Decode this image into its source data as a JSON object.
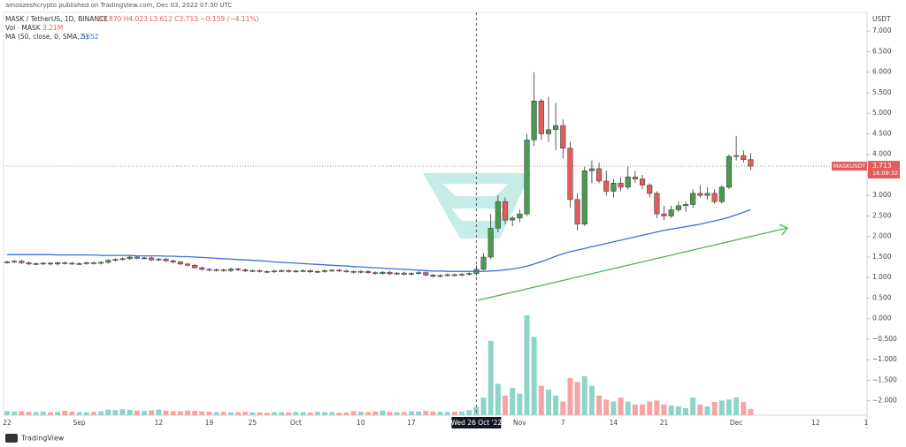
{
  "chart_data": {
    "type": "candlestick",
    "publisher": "amoozeshcrypto published on TradingView.com, Dec 03, 2022 07:50 UTC",
    "title": "MASK / TetherUS, 1D, BINANCE",
    "ohlc_label": "O3.870  H4.023  L3.612  C3.713  −0.159 (−4.11%)",
    "volume_title": "Vol · MASK",
    "volume_label": "3.21M",
    "ma_title": "MA (50, close, 0, SMA, 5)",
    "ma_label": "2.652",
    "currency": "USDT",
    "price_tag": "MASKUSDT",
    "last_price_label": "3.713",
    "countdown": "16:09:32",
    "brand": "TradingView",
    "crosshair_category": "Wed 26 Oct '22",
    "up_color": "#4c9a50",
    "down_color": "#e25c5c",
    "volume_up_color": "#8fd4c8",
    "volume_down_color": "#f5a5a5",
    "ma_color": "#3a6fe0",
    "grid": false,
    "ylim": [
      -2.35,
      7.37
    ],
    "yticks": [
      {
        "value": 7,
        "label": "7.000"
      },
      {
        "value": 6.5,
        "label": "6.500"
      },
      {
        "value": 6,
        "label": "6.000"
      },
      {
        "value": 5.5,
        "label": "5.500"
      },
      {
        "value": 5,
        "label": "5.000"
      },
      {
        "value": 4.5,
        "label": "4.500"
      },
      {
        "value": 4,
        "label": "4.000"
      },
      {
        "value": 3.5,
        "label": "3.500"
      },
      {
        "value": 3,
        "label": "3.000"
      },
      {
        "value": 2.5,
        "label": "2.500"
      },
      {
        "value": 2,
        "label": "2.000"
      },
      {
        "value": 1.5,
        "label": "1.500"
      },
      {
        "value": 1,
        "label": "1.000"
      },
      {
        "value": 0.5,
        "label": "0.500"
      },
      {
        "value": 0,
        "label": "0.000"
      },
      {
        "value": -0.5,
        "label": "−0.500"
      },
      {
        "value": -1,
        "label": "−1.000"
      },
      {
        "value": -1.5,
        "label": "−1.500"
      },
      {
        "value": -2,
        "label": "−2.000"
      }
    ],
    "categories": [
      "22",
      null,
      null,
      null,
      null,
      null,
      null,
      null,
      null,
      null,
      "Sep",
      null,
      null,
      null,
      null,
      null,
      null,
      null,
      null,
      null,
      null,
      "12",
      null,
      null,
      null,
      null,
      null,
      null,
      "19",
      null,
      null,
      null,
      null,
      null,
      "25",
      null,
      null,
      null,
      null,
      null,
      "Oct",
      null,
      null,
      null,
      null,
      null,
      null,
      null,
      null,
      "10",
      null,
      null,
      null,
      null,
      null,
      null,
      "17",
      null,
      null,
      null,
      null,
      null,
      null,
      null,
      null,
      "Wed 26 Oct '22",
      null,
      null,
      null,
      null,
      null,
      "Nov",
      null,
      null,
      null,
      null,
      null,
      "7",
      null,
      null,
      null,
      null,
      null,
      null,
      "14",
      null,
      null,
      null,
      null,
      null,
      null,
      "21",
      null,
      null,
      null,
      null,
      null,
      null,
      null,
      null,
      null,
      "Dec",
      null,
      null,
      null,
      null,
      null,
      null,
      null,
      null,
      null,
      null,
      "12",
      null,
      null,
      null,
      null,
      null,
      null,
      "1"
    ],
    "open": [
      1.37,
      1.38,
      1.4,
      1.36,
      1.33,
      1.34,
      1.35,
      1.33,
      1.36,
      1.35,
      1.34,
      1.34,
      1.36,
      1.35,
      1.37,
      1.42,
      1.44,
      1.46,
      1.5,
      1.47,
      1.48,
      1.43,
      1.45,
      1.41,
      1.38,
      1.33,
      1.3,
      1.24,
      1.2,
      1.18,
      1.19,
      1.17,
      1.21,
      1.19,
      1.16,
      1.17,
      1.15,
      1.14,
      1.16,
      1.17,
      1.15,
      1.16,
      1.17,
      1.14,
      1.15,
      1.17,
      1.18,
      1.16,
      1.15,
      1.13,
      1.15,
      1.12,
      1.1,
      1.13,
      1.09,
      1.11,
      1.08,
      1.1,
      1.12,
      1.06,
      1.03,
      1.05,
      1.07,
      1.06,
      1.08,
      1.1,
      1.2,
      1.5,
      2.2,
      2.85,
      2.4,
      2.45,
      2.55,
      4.35,
      5.3,
      4.5,
      4.6,
      4.7,
      4.15,
      2.9,
      2.3,
      3.6,
      3.65,
      3.35,
      3.1,
      3.3,
      3.2,
      3.45,
      3.4,
      3.25,
      3.05,
      2.55,
      2.5,
      2.65,
      2.75,
      2.78,
      3.05,
      3.0,
      3.05,
      2.85,
      3.2,
      3.95,
      3.97,
      3.87,
      null,
      null,
      null,
      null,
      null,
      null,
      null,
      null,
      null,
      null,
      null,
      null,
      null,
      null,
      null,
      null
    ],
    "high": [
      1.41,
      1.43,
      1.43,
      1.39,
      1.37,
      1.38,
      1.38,
      1.39,
      1.39,
      1.38,
      1.37,
      1.39,
      1.39,
      1.4,
      1.45,
      1.47,
      1.49,
      1.53,
      1.53,
      1.51,
      1.51,
      1.48,
      1.48,
      1.44,
      1.41,
      1.36,
      1.33,
      1.27,
      1.23,
      1.22,
      1.22,
      1.24,
      1.24,
      1.22,
      1.2,
      1.2,
      1.18,
      1.19,
      1.2,
      1.2,
      1.19,
      1.2,
      1.2,
      1.18,
      1.2,
      1.21,
      1.21,
      1.19,
      1.18,
      1.18,
      1.18,
      1.15,
      1.16,
      1.16,
      1.14,
      1.14,
      1.13,
      1.15,
      1.15,
      1.09,
      1.08,
      1.1,
      1.1,
      1.11,
      1.13,
      1.3,
      1.6,
      2.55,
      3.0,
      2.95,
      2.5,
      2.65,
      4.5,
      6.0,
      5.35,
      5.4,
      5.25,
      4.85,
      4.3,
      3.05,
      3.7,
      3.85,
      3.8,
      3.6,
      3.4,
      3.45,
      3.7,
      3.6,
      3.5,
      3.3,
      3.1,
      2.75,
      2.75,
      2.85,
      2.85,
      3.15,
      3.25,
      3.2,
      3.15,
      3.25,
      4.0,
      4.45,
      4.1,
      4.023,
      null,
      null,
      null,
      null,
      null,
      null,
      null,
      null,
      null,
      null,
      null,
      null,
      null,
      null,
      null,
      null
    ],
    "low": [
      1.34,
      1.35,
      1.33,
      1.3,
      1.3,
      1.31,
      1.3,
      1.3,
      1.32,
      1.31,
      1.31,
      1.31,
      1.32,
      1.32,
      1.34,
      1.39,
      1.41,
      1.43,
      1.44,
      1.44,
      1.4,
      1.4,
      1.38,
      1.35,
      1.3,
      1.27,
      1.21,
      1.17,
      1.15,
      1.15,
      1.14,
      1.14,
      1.16,
      1.13,
      1.13,
      1.12,
      1.11,
      1.11,
      1.13,
      1.12,
      1.12,
      1.13,
      1.11,
      1.11,
      1.12,
      1.14,
      1.13,
      1.12,
      1.1,
      1.1,
      1.09,
      1.07,
      1.07,
      1.06,
      1.06,
      1.05,
      1.05,
      1.07,
      1.03,
      1.0,
      1.0,
      1.02,
      1.03,
      1.03,
      1.05,
      1.05,
      1.18,
      1.45,
      2.1,
      2.3,
      2.25,
      2.35,
      2.5,
      4.2,
      4.35,
      4.3,
      4.1,
      3.9,
      2.7,
      2.15,
      2.25,
      3.3,
      3.3,
      3.0,
      2.95,
      3.1,
      3.15,
      3.3,
      3.15,
      2.95,
      2.45,
      2.4,
      2.45,
      2.6,
      2.6,
      2.7,
      2.95,
      2.9,
      2.8,
      2.8,
      3.15,
      3.85,
      3.8,
      3.612,
      null,
      null,
      null,
      null,
      null,
      null,
      null,
      null,
      null,
      null,
      null,
      null,
      null,
      null,
      null,
      null
    ],
    "close": [
      1.38,
      1.4,
      1.36,
      1.33,
      1.34,
      1.35,
      1.33,
      1.36,
      1.35,
      1.34,
      1.34,
      1.36,
      1.35,
      1.37,
      1.42,
      1.44,
      1.46,
      1.5,
      1.47,
      1.48,
      1.43,
      1.45,
      1.41,
      1.38,
      1.33,
      1.3,
      1.24,
      1.2,
      1.18,
      1.19,
      1.17,
      1.21,
      1.19,
      1.16,
      1.17,
      1.15,
      1.14,
      1.16,
      1.17,
      1.15,
      1.16,
      1.17,
      1.14,
      1.15,
      1.17,
      1.18,
      1.16,
      1.15,
      1.13,
      1.15,
      1.12,
      1.1,
      1.13,
      1.09,
      1.11,
      1.08,
      1.1,
      1.12,
      1.06,
      1.03,
      1.05,
      1.07,
      1.06,
      1.08,
      1.1,
      1.2,
      1.5,
      2.2,
      2.85,
      2.4,
      2.45,
      2.55,
      4.35,
      5.3,
      4.5,
      4.6,
      4.7,
      4.15,
      2.9,
      2.3,
      3.6,
      3.65,
      3.35,
      3.1,
      3.3,
      3.2,
      3.45,
      3.4,
      3.25,
      3.05,
      2.55,
      2.5,
      2.65,
      2.75,
      2.78,
      3.05,
      3.0,
      3.05,
      2.85,
      3.2,
      3.95,
      3.97,
      3.87,
      3.713,
      null,
      null,
      null,
      null,
      null,
      null,
      null,
      null,
      null,
      null,
      null,
      null,
      null,
      null,
      null,
      null
    ],
    "volume": [
      2.1,
      1.8,
      2.0,
      1.7,
      1.6,
      1.9,
      1.5,
      1.7,
      2.2,
      1.8,
      1.6,
      1.5,
      1.7,
      2.0,
      2.8,
      2.6,
      3.1,
      2.7,
      2.4,
      2.2,
      2.5,
      2.9,
      2.3,
      2.1,
      2.0,
      2.4,
      2.2,
      1.9,
      1.8,
      1.6,
      1.7,
      1.5,
      1.6,
      1.8,
      1.4,
      1.5,
      1.3,
      1.6,
      1.5,
      1.4,
      1.6,
      1.5,
      1.4,
      1.7,
      1.5,
      1.6,
      1.3,
      1.4,
      2.1,
      1.8,
      1.6,
      1.9,
      2.4,
      1.7,
      1.5,
      1.6,
      2.0,
      1.8,
      2.2,
      1.9,
      1.7,
      1.6,
      1.8,
      1.9,
      2.6,
      4.2,
      9,
      38,
      16,
      10,
      14,
      11,
      51,
      40,
      15,
      13,
      10,
      7,
      19,
      17,
      20,
      15,
      10,
      8,
      7,
      9,
      7,
      5.5,
      5.5,
      7,
      7.5,
      5.5,
      5,
      4.5,
      3.6,
      9,
      5.5,
      4.5,
      6.8,
      7.5,
      8,
      9,
      6.8,
      3.21,
      null,
      null,
      null,
      null,
      null,
      null,
      null,
      null,
      null,
      null,
      null,
      null,
      null,
      null,
      null,
      null
    ],
    "ma": [
      1.56,
      1.56,
      1.56,
      1.56,
      1.56,
      1.56,
      1.56,
      1.55,
      1.55,
      1.55,
      1.55,
      1.55,
      1.55,
      1.54,
      1.54,
      1.54,
      1.54,
      1.54,
      1.53,
      1.53,
      1.53,
      1.53,
      1.52,
      1.52,
      1.51,
      1.51,
      1.5,
      1.49,
      1.48,
      1.47,
      1.46,
      1.45,
      1.44,
      1.43,
      1.42,
      1.41,
      1.4,
      1.38,
      1.37,
      1.36,
      1.35,
      1.34,
      1.33,
      1.32,
      1.31,
      1.3,
      1.29,
      1.28,
      1.27,
      1.26,
      1.25,
      1.24,
      1.23,
      1.22,
      1.21,
      1.2,
      1.19,
      1.18,
      1.17,
      1.16,
      1.16,
      1.15,
      1.15,
      1.15,
      1.15,
      1.15,
      1.15,
      1.16,
      1.17,
      1.19,
      1.21,
      1.24,
      1.28,
      1.33,
      1.39,
      1.45,
      1.52,
      1.58,
      1.63,
      1.67,
      1.71,
      1.75,
      1.79,
      1.83,
      1.87,
      1.91,
      1.95,
      1.99,
      2.03,
      2.07,
      2.11,
      2.15,
      2.18,
      2.21,
      2.24,
      2.27,
      2.3,
      2.34,
      2.38,
      2.42,
      2.47,
      2.53,
      2.59,
      2.652,
      null,
      null,
      null,
      null,
      null,
      null,
      null,
      null,
      null,
      null,
      null,
      null,
      null,
      null,
      null,
      null
    ]
  }
}
